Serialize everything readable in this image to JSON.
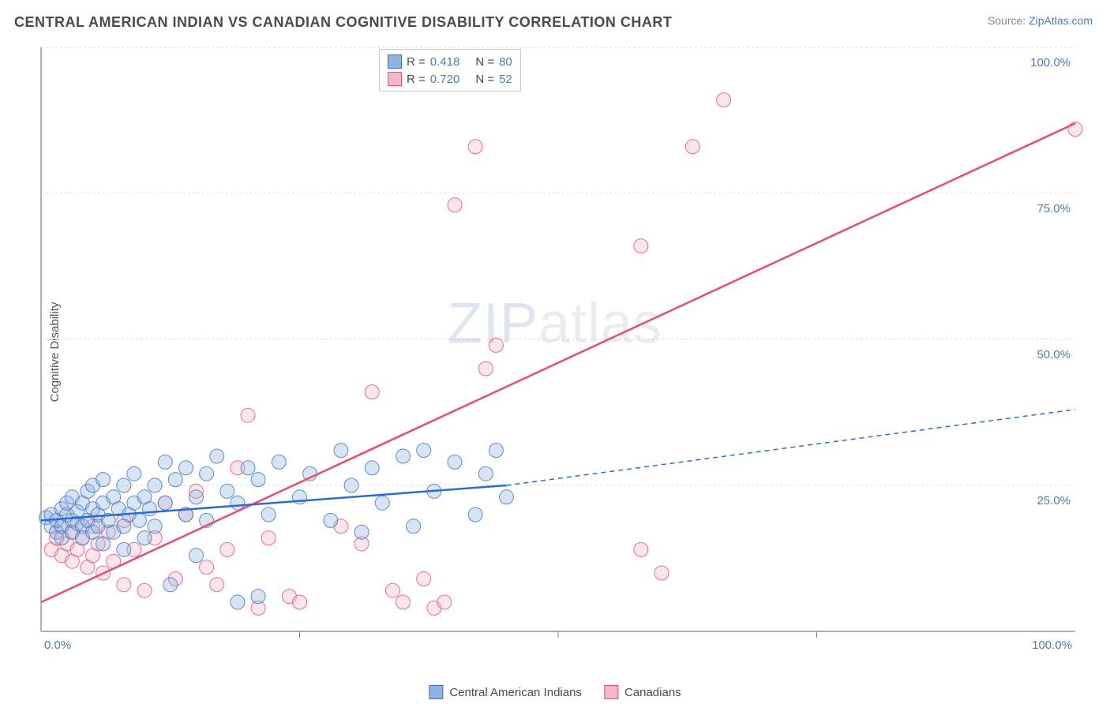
{
  "title": "CENTRAL AMERICAN INDIAN VS CANADIAN COGNITIVE DISABILITY CORRELATION CHART",
  "source_label": "Source: ",
  "source_link": "ZipAtlas.com",
  "ylabel": "Cognitive Disability",
  "watermark": {
    "part1": "ZIP",
    "part2": "atlas"
  },
  "chart": {
    "type": "scatter",
    "background_color": "#ffffff",
    "grid_color": "#dcdcdc",
    "axis_color": "#808080",
    "tick_label_color": "#4a7ab8",
    "xlim": [
      0,
      100
    ],
    "ylim": [
      0,
      100
    ],
    "xtick_step": 25,
    "ytick_step": 25,
    "tick_format": "percent",
    "xtick_labels": [
      "0.0%",
      "100.0%"
    ],
    "ytick_labels": [
      "25.0%",
      "50.0%",
      "75.0%",
      "100.0%"
    ],
    "marker_radius": 9,
    "series": [
      {
        "name": "Central American Indians",
        "fill_color": "#8fb3e0",
        "stroke_color": "#3b72c4",
        "r": 0.418,
        "n": 80,
        "trend": {
          "x1": 0,
          "y1": 19,
          "x2": 45,
          "y2": 25,
          "dash_x2": 100,
          "dash_y2": 38,
          "color": "#2d6bd0"
        },
        "points": [
          [
            0.5,
            19.5
          ],
          [
            1,
            20
          ],
          [
            1,
            18
          ],
          [
            1.5,
            17
          ],
          [
            1.5,
            19
          ],
          [
            2,
            21
          ],
          [
            2,
            18
          ],
          [
            2,
            16
          ],
          [
            2.5,
            20
          ],
          [
            2.5,
            22
          ],
          [
            3,
            19
          ],
          [
            3,
            17
          ],
          [
            3,
            23
          ],
          [
            3.5,
            18.5
          ],
          [
            3.5,
            20.5
          ],
          [
            4,
            18
          ],
          [
            4,
            22
          ],
          [
            4,
            16
          ],
          [
            4.5,
            19
          ],
          [
            4.5,
            24
          ],
          [
            5,
            21
          ],
          [
            5,
            17
          ],
          [
            5,
            25
          ],
          [
            5.5,
            20
          ],
          [
            5.5,
            18
          ],
          [
            6,
            22
          ],
          [
            6,
            15
          ],
          [
            6,
            26
          ],
          [
            6.5,
            19
          ],
          [
            7,
            23
          ],
          [
            7,
            17
          ],
          [
            7.5,
            21
          ],
          [
            8,
            25
          ],
          [
            8,
            18
          ],
          [
            8,
            14
          ],
          [
            8.5,
            20
          ],
          [
            9,
            22
          ],
          [
            9,
            27
          ],
          [
            9.5,
            19
          ],
          [
            10,
            23
          ],
          [
            10,
            16
          ],
          [
            10.5,
            21
          ],
          [
            11,
            25
          ],
          [
            11,
            18
          ],
          [
            12,
            29
          ],
          [
            12,
            22
          ],
          [
            12.5,
            8
          ],
          [
            13,
            26
          ],
          [
            14,
            20
          ],
          [
            14,
            28
          ],
          [
            15,
            23
          ],
          [
            15,
            13
          ],
          [
            16,
            27
          ],
          [
            16,
            19
          ],
          [
            17,
            30
          ],
          [
            18,
            24
          ],
          [
            19,
            22
          ],
          [
            19,
            5
          ],
          [
            21,
            6
          ],
          [
            20,
            28
          ],
          [
            21,
            26
          ],
          [
            22,
            20
          ],
          [
            23,
            29
          ],
          [
            25,
            23
          ],
          [
            26,
            27
          ],
          [
            28,
            19
          ],
          [
            29,
            31
          ],
          [
            30,
            25
          ],
          [
            31,
            17
          ],
          [
            32,
            28
          ],
          [
            33,
            22
          ],
          [
            35,
            30
          ],
          [
            36,
            18
          ],
          [
            37,
            31
          ],
          [
            38,
            24
          ],
          [
            40,
            29
          ],
          [
            42,
            20
          ],
          [
            43,
            27
          ],
          [
            44,
            31
          ],
          [
            45,
            23
          ]
        ]
      },
      {
        "name": "Canadians",
        "fill_color": "#f5b8c8",
        "stroke_color": "#e84a7a",
        "r": 0.72,
        "n": 52,
        "trend": {
          "x1": 0,
          "y1": 5,
          "x2": 100,
          "y2": 87,
          "color": "#e84a7a"
        },
        "points": [
          [
            1,
            14
          ],
          [
            1.5,
            16
          ],
          [
            2,
            13
          ],
          [
            2,
            18
          ],
          [
            2.5,
            15
          ],
          [
            3,
            12
          ],
          [
            3,
            17
          ],
          [
            3.5,
            14
          ],
          [
            4,
            16
          ],
          [
            4.5,
            11
          ],
          [
            5,
            18
          ],
          [
            5,
            13
          ],
          [
            5.5,
            15
          ],
          [
            6,
            10
          ],
          [
            6.5,
            17
          ],
          [
            7,
            12
          ],
          [
            8,
            19
          ],
          [
            8,
            8
          ],
          [
            9,
            14
          ],
          [
            10,
            7
          ],
          [
            11,
            16
          ],
          [
            12,
            22
          ],
          [
            13,
            9
          ],
          [
            14,
            20
          ],
          [
            15,
            24
          ],
          [
            16,
            11
          ],
          [
            17,
            8
          ],
          [
            18,
            14
          ],
          [
            19,
            28
          ],
          [
            20,
            37
          ],
          [
            21,
            4
          ],
          [
            22,
            16
          ],
          [
            24,
            6
          ],
          [
            25,
            5
          ],
          [
            29,
            18
          ],
          [
            31,
            15
          ],
          [
            32,
            41
          ],
          [
            34,
            7
          ],
          [
            35,
            5
          ],
          [
            37,
            9
          ],
          [
            38,
            4
          ],
          [
            39,
            5
          ],
          [
            40,
            73
          ],
          [
            42,
            83
          ],
          [
            43,
            45
          ],
          [
            44,
            49
          ],
          [
            58,
            66
          ],
          [
            60,
            10
          ],
          [
            63,
            83
          ],
          [
            66,
            91
          ],
          [
            100,
            86
          ],
          [
            58,
            14
          ]
        ]
      }
    ]
  },
  "legend_top": {
    "rows": [
      {
        "swatch": 0,
        "r_label": "R =",
        "r_val": "0.418",
        "n_label": "N =",
        "n_val": "80"
      },
      {
        "swatch": 1,
        "r_label": "R =",
        "r_val": "0.720",
        "n_label": "N =",
        "n_val": "52"
      }
    ]
  },
  "legend_bottom": {
    "items": [
      {
        "swatch": 0,
        "label": "Central American Indians"
      },
      {
        "swatch": 1,
        "label": "Canadians"
      }
    ]
  }
}
